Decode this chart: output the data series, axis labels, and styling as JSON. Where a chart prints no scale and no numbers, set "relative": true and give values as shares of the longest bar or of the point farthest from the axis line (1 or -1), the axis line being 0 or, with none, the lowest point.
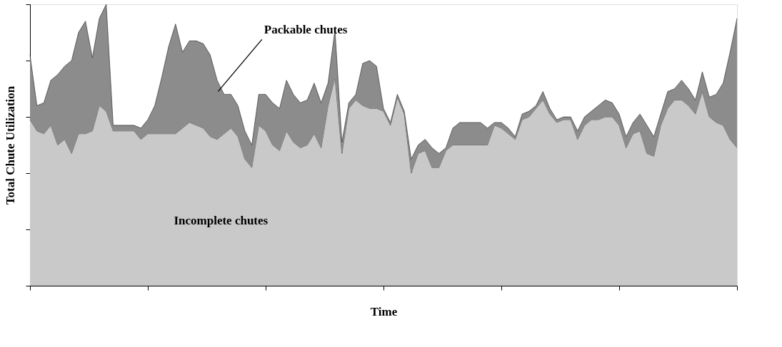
{
  "chart_data": {
    "type": "area",
    "stacked": true,
    "relative": true,
    "xlabel": "Time",
    "ylabel": "Total Chute Utilization",
    "tick_labels": false,
    "grid": false,
    "categories": [
      null,
      null,
      null,
      null,
      null,
      null,
      null,
      null,
      null,
      null,
      null,
      null,
      null,
      null,
      null,
      null,
      null,
      null,
      null,
      null,
      null,
      null,
      null,
      null,
      null,
      null,
      null,
      null,
      null,
      null,
      null,
      null,
      null,
      null,
      null,
      null,
      null,
      null,
      null,
      null,
      null,
      null,
      null,
      null,
      null,
      null,
      null,
      null,
      null,
      null,
      null,
      null,
      null,
      null,
      null,
      null,
      null,
      null,
      null,
      null,
      null,
      null,
      null,
      null,
      null,
      null,
      null,
      null,
      null,
      null,
      null,
      null,
      null,
      null,
      null,
      null,
      null,
      null,
      null,
      null,
      null,
      null,
      null,
      null,
      null,
      null,
      null,
      null,
      null,
      null,
      null,
      null,
      null,
      null,
      null,
      null,
      null,
      null,
      null,
      null,
      null,
      null,
      null
    ],
    "series": [
      {
        "name": "Incomplete chutes",
        "color": "#c9c9c9",
        "values": [
          0.59,
          0.55,
          0.54,
          0.57,
          0.5,
          0.52,
          0.47,
          0.54,
          0.54,
          0.55,
          0.64,
          0.62,
          0.55,
          0.55,
          0.55,
          0.55,
          0.52,
          0.54,
          0.54,
          0.54,
          0.54,
          0.54,
          0.56,
          0.58,
          0.57,
          0.56,
          0.53,
          0.52,
          0.54,
          0.56,
          0.53,
          0.45,
          0.42,
          0.57,
          0.55,
          0.5,
          0.48,
          0.55,
          0.51,
          0.49,
          0.5,
          0.54,
          0.49,
          0.64,
          0.74,
          0.47,
          0.63,
          0.66,
          0.64,
          0.63,
          0.63,
          0.62,
          0.57,
          0.67,
          0.61,
          0.4,
          0.47,
          0.48,
          0.42,
          0.42,
          0.48,
          0.5,
          0.5,
          0.5,
          0.5,
          0.5,
          0.5,
          0.57,
          0.56,
          0.54,
          0.52,
          0.59,
          0.6,
          0.63,
          0.66,
          0.61,
          0.58,
          0.59,
          0.59,
          0.52,
          0.57,
          0.59,
          0.59,
          0.6,
          0.6,
          0.57,
          0.49,
          0.54,
          0.55,
          0.47,
          0.46,
          0.57,
          0.63,
          0.66,
          0.66,
          0.64,
          0.61,
          0.69,
          0.6,
          0.58,
          0.57,
          0.52,
          0.49
        ]
      },
      {
        "name": "Packable chutes",
        "color": "#8c8c8c",
        "values": [
          0.23,
          0.09,
          0.11,
          0.16,
          0.25,
          0.26,
          0.33,
          0.36,
          0.4,
          0.26,
          0.31,
          0.38,
          0.02,
          0.02,
          0.02,
          0.02,
          0.04,
          0.05,
          0.1,
          0.2,
          0.31,
          0.39,
          0.27,
          0.29,
          0.3,
          0.3,
          0.29,
          0.21,
          0.14,
          0.12,
          0.11,
          0.1,
          0.08,
          0.11,
          0.13,
          0.15,
          0.15,
          0.18,
          0.17,
          0.16,
          0.16,
          0.18,
          0.16,
          0.08,
          0.17,
          0.04,
          0.02,
          0.02,
          0.15,
          0.17,
          0.15,
          0.01,
          0.01,
          0.01,
          0.01,
          0.05,
          0.03,
          0.04,
          0.07,
          0.05,
          0.01,
          0.06,
          0.08,
          0.08,
          0.08,
          0.08,
          0.06,
          0.01,
          0.02,
          0.02,
          0.01,
          0.02,
          0.02,
          0.01,
          0.03,
          0.02,
          0.01,
          0.01,
          0.01,
          0.03,
          0.03,
          0.03,
          0.05,
          0.06,
          0.05,
          0.04,
          0.04,
          0.04,
          0.06,
          0.1,
          0.07,
          0.04,
          0.06,
          0.04,
          0.07,
          0.06,
          0.05,
          0.07,
          0.07,
          0.1,
          0.15,
          0.31,
          0.46
        ]
      }
    ]
  }
}
